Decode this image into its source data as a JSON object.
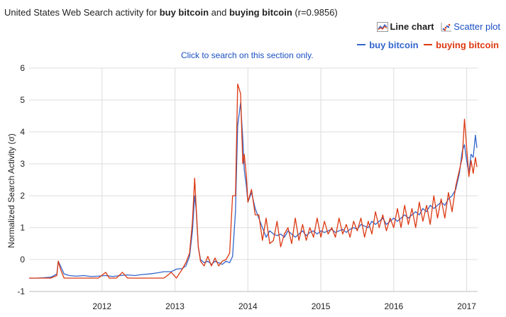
{
  "header": {
    "title_prefix": "United States Web Search activity for ",
    "term1": "buy bitcoin",
    "title_and": " and ",
    "term2": "buying bitcoin",
    "title_suffix": " (r=0.9856)"
  },
  "view_toggle": {
    "line_chart_label": "Line chart",
    "scatter_plot_label": "Scatter plot"
  },
  "hint_text": "Click to search on this section only.",
  "colors": {
    "series1": "#3366cc",
    "series2": "#dc3912",
    "grid": "#dddddd",
    "link": "#1a4fc4"
  },
  "chart_data": {
    "type": "line",
    "title": "United States Web Search activity for buy bitcoin and buying bitcoin (r=0.9856)",
    "xlabel": "",
    "ylabel": "Normalized Search Activity (σ)",
    "xlim": [
      2011.0,
      2017.15
    ],
    "ylim": [
      -1,
      6
    ],
    "xticks": [
      2012,
      2013,
      2014,
      2015,
      2016,
      2017
    ],
    "yticks": [
      -1,
      0,
      1,
      2,
      3,
      4,
      5,
      6
    ],
    "grid": true,
    "legend": "top-right",
    "series": [
      {
        "name": "buy bitcoin",
        "color": "#3366cc",
        "points": [
          [
            2011.0,
            -0.58
          ],
          [
            2011.1,
            -0.58
          ],
          [
            2011.2,
            -0.57
          ],
          [
            2011.3,
            -0.55
          ],
          [
            2011.38,
            -0.45
          ],
          [
            2011.4,
            -0.05
          ],
          [
            2011.43,
            -0.2
          ],
          [
            2011.48,
            -0.45
          ],
          [
            2011.55,
            -0.5
          ],
          [
            2011.65,
            -0.52
          ],
          [
            2011.75,
            -0.5
          ],
          [
            2011.85,
            -0.53
          ],
          [
            2011.95,
            -0.52
          ],
          [
            2012.05,
            -0.5
          ],
          [
            2012.15,
            -0.53
          ],
          [
            2012.25,
            -0.5
          ],
          [
            2012.35,
            -0.48
          ],
          [
            2012.45,
            -0.5
          ],
          [
            2012.55,
            -0.47
          ],
          [
            2012.65,
            -0.45
          ],
          [
            2012.75,
            -0.42
          ],
          [
            2012.85,
            -0.38
          ],
          [
            2012.95,
            -0.38
          ],
          [
            2013.02,
            -0.3
          ],
          [
            2013.1,
            -0.28
          ],
          [
            2013.15,
            -0.2
          ],
          [
            2013.2,
            0.1
          ],
          [
            2013.24,
            0.9
          ],
          [
            2013.27,
            2.0
          ],
          [
            2013.29,
            1.6
          ],
          [
            2013.32,
            0.4
          ],
          [
            2013.35,
            0.0
          ],
          [
            2013.4,
            -0.1
          ],
          [
            2013.45,
            -0.05
          ],
          [
            2013.5,
            -0.15
          ],
          [
            2013.55,
            -0.05
          ],
          [
            2013.6,
            -0.1
          ],
          [
            2013.65,
            -0.15
          ],
          [
            2013.7,
            -0.05
          ],
          [
            2013.75,
            -0.1
          ],
          [
            2013.79,
            0.1
          ],
          [
            2013.83,
            1.5
          ],
          [
            2013.86,
            4.2
          ],
          [
            2013.9,
            4.9
          ],
          [
            2013.93,
            3.8
          ],
          [
            2013.95,
            2.8
          ],
          [
            2013.98,
            2.3
          ],
          [
            2014.0,
            1.8
          ],
          [
            2014.05,
            2.1
          ],
          [
            2014.1,
            1.6
          ],
          [
            2014.15,
            1.3
          ],
          [
            2014.2,
            1.0
          ],
          [
            2014.25,
            0.7
          ],
          [
            2014.3,
            0.9
          ],
          [
            2014.35,
            0.8
          ],
          [
            2014.4,
            0.75
          ],
          [
            2014.45,
            0.8
          ],
          [
            2014.5,
            0.7
          ],
          [
            2014.55,
            0.9
          ],
          [
            2014.6,
            0.8
          ],
          [
            2014.65,
            0.7
          ],
          [
            2014.7,
            0.8
          ],
          [
            2014.75,
            0.9
          ],
          [
            2014.8,
            0.75
          ],
          [
            2014.85,
            0.85
          ],
          [
            2014.9,
            0.9
          ],
          [
            2014.95,
            0.8
          ],
          [
            2015.0,
            0.9
          ],
          [
            2015.05,
            0.85
          ],
          [
            2015.1,
            0.9
          ],
          [
            2015.15,
            0.95
          ],
          [
            2015.2,
            0.85
          ],
          [
            2015.25,
            0.9
          ],
          [
            2015.3,
            0.95
          ],
          [
            2015.35,
            0.85
          ],
          [
            2015.4,
            0.95
          ],
          [
            2015.45,
            1.0
          ],
          [
            2015.5,
            0.95
          ],
          [
            2015.55,
            1.1
          ],
          [
            2015.6,
            1.05
          ],
          [
            2015.65,
            1.0
          ],
          [
            2015.7,
            1.2
          ],
          [
            2015.75,
            1.1
          ],
          [
            2015.8,
            1.2
          ],
          [
            2015.85,
            1.3
          ],
          [
            2015.9,
            1.1
          ],
          [
            2015.95,
            1.2
          ],
          [
            2016.0,
            1.3
          ],
          [
            2016.05,
            1.2
          ],
          [
            2016.1,
            1.3
          ],
          [
            2016.15,
            1.4
          ],
          [
            2016.2,
            1.3
          ],
          [
            2016.25,
            1.4
          ],
          [
            2016.3,
            1.5
          ],
          [
            2016.35,
            1.4
          ],
          [
            2016.4,
            1.6
          ],
          [
            2016.45,
            1.5
          ],
          [
            2016.5,
            1.7
          ],
          [
            2016.55,
            1.6
          ],
          [
            2016.6,
            1.7
          ],
          [
            2016.65,
            1.8
          ],
          [
            2016.7,
            1.7
          ],
          [
            2016.75,
            1.9
          ],
          [
            2016.8,
            2.0
          ],
          [
            2016.85,
            2.2
          ],
          [
            2016.9,
            2.7
          ],
          [
            2016.94,
            3.4
          ],
          [
            2016.97,
            3.6
          ],
          [
            2017.0,
            3.1
          ],
          [
            2017.03,
            2.7
          ],
          [
            2017.06,
            3.3
          ],
          [
            2017.09,
            3.2
          ],
          [
            2017.12,
            3.9
          ],
          [
            2017.14,
            3.5
          ]
        ]
      },
      {
        "name": "buying bitcoin",
        "color": "#dc3912",
        "points": [
          [
            2011.0,
            -0.58
          ],
          [
            2011.1,
            -0.58
          ],
          [
            2011.2,
            -0.58
          ],
          [
            2011.3,
            -0.58
          ],
          [
            2011.38,
            -0.5
          ],
          [
            2011.4,
            -0.05
          ],
          [
            2011.43,
            -0.3
          ],
          [
            2011.48,
            -0.58
          ],
          [
            2011.55,
            -0.58
          ],
          [
            2011.65,
            -0.58
          ],
          [
            2011.75,
            -0.58
          ],
          [
            2011.85,
            -0.58
          ],
          [
            2011.95,
            -0.58
          ],
          [
            2012.05,
            -0.4
          ],
          [
            2012.1,
            -0.58
          ],
          [
            2012.2,
            -0.58
          ],
          [
            2012.28,
            -0.4
          ],
          [
            2012.35,
            -0.58
          ],
          [
            2012.45,
            -0.58
          ],
          [
            2012.55,
            -0.58
          ],
          [
            2012.65,
            -0.58
          ],
          [
            2012.75,
            -0.58
          ],
          [
            2012.85,
            -0.58
          ],
          [
            2012.95,
            -0.4
          ],
          [
            2013.02,
            -0.58
          ],
          [
            2013.1,
            -0.3
          ],
          [
            2013.15,
            -0.1
          ],
          [
            2013.2,
            0.2
          ],
          [
            2013.24,
            1.2
          ],
          [
            2013.27,
            2.55
          ],
          [
            2013.29,
            1.7
          ],
          [
            2013.32,
            0.4
          ],
          [
            2013.35,
            -0.05
          ],
          [
            2013.4,
            -0.2
          ],
          [
            2013.45,
            0.1
          ],
          [
            2013.5,
            -0.2
          ],
          [
            2013.55,
            0.05
          ],
          [
            2013.6,
            -0.2
          ],
          [
            2013.65,
            -0.05
          ],
          [
            2013.7,
            0.0
          ],
          [
            2013.75,
            0.2
          ],
          [
            2013.79,
            2.0
          ],
          [
            2013.83,
            2.0
          ],
          [
            2013.86,
            5.5
          ],
          [
            2013.9,
            5.2
          ],
          [
            2013.93,
            3.0
          ],
          [
            2013.95,
            3.3
          ],
          [
            2013.98,
            2.6
          ],
          [
            2014.0,
            1.8
          ],
          [
            2014.05,
            2.2
          ],
          [
            2014.1,
            1.4
          ],
          [
            2014.15,
            1.4
          ],
          [
            2014.2,
            0.6
          ],
          [
            2014.25,
            1.3
          ],
          [
            2014.3,
            0.5
          ],
          [
            2014.35,
            0.6
          ],
          [
            2014.4,
            1.2
          ],
          [
            2014.45,
            0.4
          ],
          [
            2014.5,
            0.8
          ],
          [
            2014.55,
            1.0
          ],
          [
            2014.6,
            0.5
          ],
          [
            2014.65,
            1.3
          ],
          [
            2014.7,
            0.6
          ],
          [
            2014.75,
            1.1
          ],
          [
            2014.8,
            0.6
          ],
          [
            2014.85,
            1.0
          ],
          [
            2014.9,
            0.7
          ],
          [
            2014.95,
            1.3
          ],
          [
            2015.0,
            0.7
          ],
          [
            2015.05,
            1.2
          ],
          [
            2015.1,
            0.8
          ],
          [
            2015.15,
            1.0
          ],
          [
            2015.2,
            0.7
          ],
          [
            2015.25,
            1.3
          ],
          [
            2015.3,
            0.8
          ],
          [
            2015.35,
            1.1
          ],
          [
            2015.4,
            0.7
          ],
          [
            2015.45,
            1.2
          ],
          [
            2015.5,
            0.9
          ],
          [
            2015.55,
            1.3
          ],
          [
            2015.6,
            0.7
          ],
          [
            2015.65,
            1.2
          ],
          [
            2015.7,
            0.8
          ],
          [
            2015.75,
            1.5
          ],
          [
            2015.8,
            1.0
          ],
          [
            2015.85,
            1.4
          ],
          [
            2015.9,
            0.9
          ],
          [
            2015.95,
            1.3
          ],
          [
            2016.0,
            1.0
          ],
          [
            2016.05,
            1.6
          ],
          [
            2016.1,
            1.0
          ],
          [
            2016.15,
            1.7
          ],
          [
            2016.2,
            1.1
          ],
          [
            2016.25,
            1.6
          ],
          [
            2016.3,
            1.0
          ],
          [
            2016.35,
            1.8
          ],
          [
            2016.4,
            1.2
          ],
          [
            2016.45,
            1.7
          ],
          [
            2016.5,
            1.1
          ],
          [
            2016.55,
            2.0
          ],
          [
            2016.6,
            1.3
          ],
          [
            2016.65,
            1.9
          ],
          [
            2016.7,
            1.3
          ],
          [
            2016.75,
            2.1
          ],
          [
            2016.8,
            1.5
          ],
          [
            2016.85,
            2.3
          ],
          [
            2016.9,
            2.8
          ],
          [
            2016.94,
            3.2
          ],
          [
            2016.97,
            4.4
          ],
          [
            2017.0,
            3.5
          ],
          [
            2017.03,
            2.6
          ],
          [
            2017.06,
            3.1
          ],
          [
            2017.09,
            2.7
          ],
          [
            2017.12,
            3.2
          ],
          [
            2017.14,
            2.9
          ]
        ]
      }
    ]
  }
}
